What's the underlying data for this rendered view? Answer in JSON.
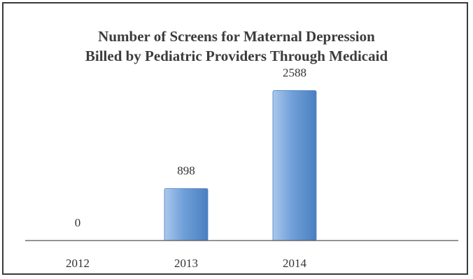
{
  "chart_data": {
    "type": "bar",
    "title_lines": [
      "Number of Screens for Maternal Depression",
      "Billed by Pediatric Providers Through Medicaid"
    ],
    "categories": [
      "2012",
      "2013",
      "2014"
    ],
    "values": [
      0,
      898,
      2588
    ],
    "data_labels": [
      "0",
      "898",
      "2588"
    ],
    "xlabel": "",
    "ylabel": "",
    "ylim": [
      0,
      2800
    ],
    "grid": false,
    "legend": "none",
    "colors": {
      "bar_light": "#a9c8ec",
      "bar_mid": "#6f9fd8",
      "bar_dark": "#4a7fc1",
      "axis": "#555555",
      "text": "#333333"
    }
  }
}
